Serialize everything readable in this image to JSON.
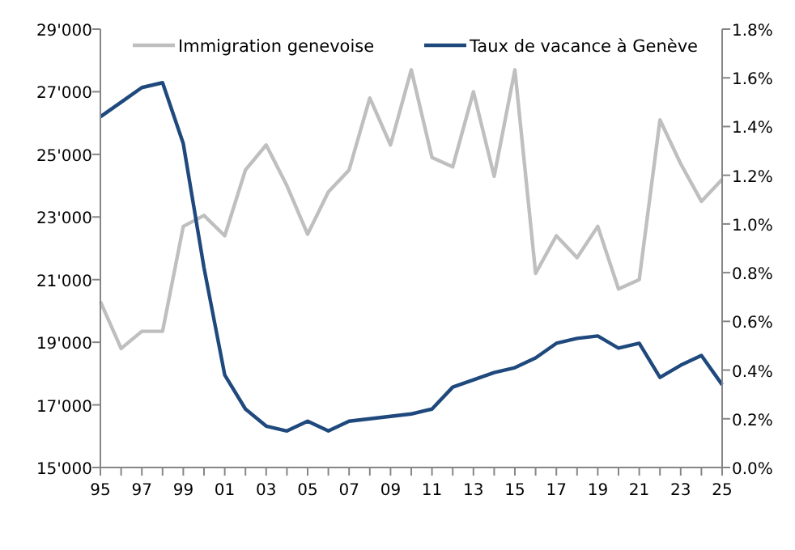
{
  "chart_data": {
    "type": "line",
    "x": [
      1995,
      1996,
      1997,
      1998,
      1999,
      2000,
      2001,
      2002,
      2003,
      2004,
      2005,
      2006,
      2007,
      2008,
      2009,
      2010,
      2011,
      2012,
      2013,
      2014,
      2015,
      2016,
      2017,
      2018,
      2019,
      2020,
      2021,
      2022,
      2023,
      2024,
      2025
    ],
    "series": [
      {
        "name": "Immigration genevoise",
        "color": "#bfbfbf",
        "values": [
          20300,
          18800,
          19350,
          19350,
          22700,
          23050,
          22400,
          24500,
          25300,
          24000,
          22450,
          23800,
          24500,
          26800,
          25300,
          27700,
          24900,
          24600,
          27000,
          24300,
          27700,
          21200,
          22400,
          21700,
          22700,
          20700,
          21000,
          26100,
          24700,
          23500,
          24200
        ]
      },
      {
        "name": "Taux de vacance à Genève",
        "color": "#1f497d",
        "axis": "y2",
        "values": [
          1.44,
          1.5,
          1.56,
          1.58,
          1.33,
          0.82,
          0.38,
          0.24,
          0.17,
          0.15,
          0.19,
          0.15,
          0.19,
          0.2,
          0.21,
          0.22,
          0.24,
          0.33,
          0.36,
          0.39,
          0.41,
          0.45,
          0.51,
          0.53,
          0.54,
          0.49,
          0.51,
          0.37,
          0.42,
          0.46,
          0.34
        ]
      }
    ],
    "xlim": [
      1995,
      2025
    ],
    "xticks": [
      {
        "value": 1995,
        "label": "95"
      },
      {
        "value": 1996,
        "label": null
      },
      {
        "value": 1997,
        "label": "97"
      },
      {
        "value": 1998,
        "label": null
      },
      {
        "value": 1999,
        "label": "99"
      },
      {
        "value": 2000,
        "label": null
      },
      {
        "value": 2001,
        "label": "01"
      },
      {
        "value": 2002,
        "label": null
      },
      {
        "value": 2003,
        "label": "03"
      },
      {
        "value": 2004,
        "label": null
      },
      {
        "value": 2005,
        "label": "05"
      },
      {
        "value": 2006,
        "label": null
      },
      {
        "value": 2007,
        "label": "07"
      },
      {
        "value": 2008,
        "label": null
      },
      {
        "value": 2009,
        "label": "09"
      },
      {
        "value": 2010,
        "label": null
      },
      {
        "value": 2011,
        "label": "11"
      },
      {
        "value": 2012,
        "label": null
      },
      {
        "value": 2013,
        "label": "13"
      },
      {
        "value": 2014,
        "label": null
      },
      {
        "value": 2015,
        "label": "15"
      },
      {
        "value": 2016,
        "label": null
      },
      {
        "value": 2017,
        "label": "17"
      },
      {
        "value": 2018,
        "label": null
      },
      {
        "value": 2019,
        "label": "19"
      },
      {
        "value": 2020,
        "label": null
      },
      {
        "value": 2021,
        "label": "21"
      },
      {
        "value": 2022,
        "label": null
      },
      {
        "value": 2023,
        "label": "23"
      },
      {
        "value": 2024,
        "label": null
      },
      {
        "value": 2025,
        "label": "25"
      }
    ],
    "ylim": [
      15000,
      29000
    ],
    "yticks": [
      {
        "value": 15000,
        "label": "15'000"
      },
      {
        "value": 17000,
        "label": "17'000"
      },
      {
        "value": 19000,
        "label": "19'000"
      },
      {
        "value": 21000,
        "label": "21'000"
      },
      {
        "value": 23000,
        "label": "23'000"
      },
      {
        "value": 25000,
        "label": "25'000"
      },
      {
        "value": 27000,
        "label": "27'000"
      },
      {
        "value": 29000,
        "label": "29'000"
      }
    ],
    "y2lim": [
      0,
      1.8
    ],
    "y2ticks": [
      {
        "value": 0,
        "label": "0.0%"
      },
      {
        "value": 0.2,
        "label": "0.2%"
      },
      {
        "value": 0.4,
        "label": "0.4%"
      },
      {
        "value": 0.6,
        "label": "0.6%"
      },
      {
        "value": 0.8,
        "label": "0.8%"
      },
      {
        "value": 1,
        "label": "1.0%"
      },
      {
        "value": 1.2,
        "label": "1.2%"
      },
      {
        "value": 1.4,
        "label": "1.4%"
      },
      {
        "value": 1.6,
        "label": "1.6%"
      },
      {
        "value": 1.8,
        "label": "1.8%"
      }
    ],
    "legend": "top",
    "grid": false,
    "marker": "none",
    "line_style": "solid"
  }
}
